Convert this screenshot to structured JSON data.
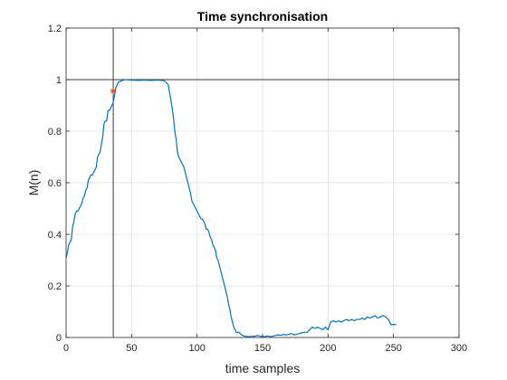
{
  "chart_data": {
    "type": "line",
    "title": "Time synchronisation",
    "xlabel": "time samples",
    "ylabel": "M(n)",
    "xlim": [
      0,
      300
    ],
    "ylim": [
      0,
      1.2
    ],
    "xticks": [
      0,
      50,
      100,
      150,
      200,
      250,
      300
    ],
    "yticks": [
      0,
      0.2,
      0.4,
      0.6,
      0.8,
      1,
      1.2
    ],
    "xtick_labels": [
      "0",
      "50",
      "100",
      "150",
      "200",
      "250",
      "300"
    ],
    "ytick_labels": [
      "0",
      "0.2",
      "0.4",
      "0.6",
      "0.8",
      "1",
      "1.2"
    ],
    "grid": true,
    "series": [
      {
        "color": "#0072bd",
        "x": [
          0,
          1,
          2,
          3,
          4,
          5,
          6,
          7,
          8,
          9,
          10,
          11,
          12,
          13,
          14,
          15,
          16,
          17,
          18,
          19,
          20,
          21,
          22,
          23,
          24,
          25,
          26,
          27,
          28,
          29,
          30,
          31,
          32,
          33,
          34,
          35,
          36,
          37,
          38,
          40,
          42,
          45,
          50,
          55,
          60,
          65,
          70,
          75,
          78,
          79,
          80,
          81,
          82,
          83,
          84,
          85,
          86,
          87,
          88,
          89,
          90,
          91,
          92,
          93,
          94,
          95,
          96,
          97,
          98,
          99,
          100,
          101,
          102,
          103,
          104,
          105,
          106,
          107,
          108,
          109,
          110,
          111,
          112,
          113,
          114,
          115,
          116,
          117,
          118,
          119,
          120,
          121,
          122,
          123,
          124,
          125,
          126,
          127,
          128,
          129,
          130,
          132,
          134,
          136,
          138,
          140,
          142,
          144,
          146,
          148,
          150,
          152,
          154,
          156,
          158,
          160,
          162,
          164,
          166,
          168,
          170,
          172,
          174,
          176,
          178,
          180,
          182,
          184,
          186,
          188,
          190,
          192,
          194,
          196,
          198,
          200,
          202,
          204,
          206,
          208,
          210,
          212,
          214,
          216,
          218,
          220,
          222,
          224,
          226,
          228,
          230,
          232,
          234,
          236,
          238,
          240,
          242,
          244,
          246,
          248,
          250,
          252
        ],
        "y": [
          0.31,
          0.33,
          0.36,
          0.37,
          0.38,
          0.43,
          0.45,
          0.48,
          0.49,
          0.49,
          0.5,
          0.51,
          0.52,
          0.54,
          0.55,
          0.57,
          0.58,
          0.61,
          0.62,
          0.63,
          0.63,
          0.64,
          0.65,
          0.66,
          0.7,
          0.71,
          0.72,
          0.75,
          0.78,
          0.83,
          0.84,
          0.84,
          0.88,
          0.88,
          0.89,
          0.9,
          0.91,
          0.94,
          0.97,
          0.99,
          0.995,
          1,
          0.998,
          0.997,
          0.998,
          0.997,
          0.998,
          0.996,
          0.98,
          0.95,
          0.92,
          0.89,
          0.85,
          0.8,
          0.77,
          0.72,
          0.7,
          0.69,
          0.68,
          0.67,
          0.66,
          0.64,
          0.62,
          0.6,
          0.58,
          0.56,
          0.53,
          0.52,
          0.51,
          0.5,
          0.49,
          0.48,
          0.47,
          0.46,
          0.46,
          0.45,
          0.44,
          0.42,
          0.42,
          0.41,
          0.39,
          0.38,
          0.36,
          0.35,
          0.34,
          0.31,
          0.3,
          0.28,
          0.26,
          0.24,
          0.22,
          0.2,
          0.18,
          0.16,
          0.13,
          0.11,
          0.08,
          0.06,
          0.04,
          0.03,
          0.02,
          0.02,
          0.01,
          0.005,
          0.004,
          0.003,
          0.005,
          0.004,
          0.008,
          0.005,
          0.003,
          0.004,
          0.006,
          0.003,
          0.005,
          0.008,
          0.01,
          0.008,
          0.012,
          0.01,
          0.012,
          0.015,
          0.01,
          0.012,
          0.015,
          0.018,
          0.02,
          0.02,
          0.03,
          0.04,
          0.035,
          0.04,
          0.035,
          0.03,
          0.04,
          0.03,
          0.06,
          0.065,
          0.06,
          0.065,
          0.06,
          0.065,
          0.07,
          0.065,
          0.07,
          0.065,
          0.07,
          0.07,
          0.075,
          0.07,
          0.08,
          0.075,
          0.08,
          0.085,
          0.075,
          0.08,
          0.085,
          0.08,
          0.07,
          0.05,
          0.05,
          0.05
        ]
      }
    ],
    "hlines": [
      1
    ],
    "vlines": [
      36
    ],
    "marker": {
      "x": 36,
      "y": 0.955,
      "symbol": "*",
      "color": "#d95319"
    }
  }
}
